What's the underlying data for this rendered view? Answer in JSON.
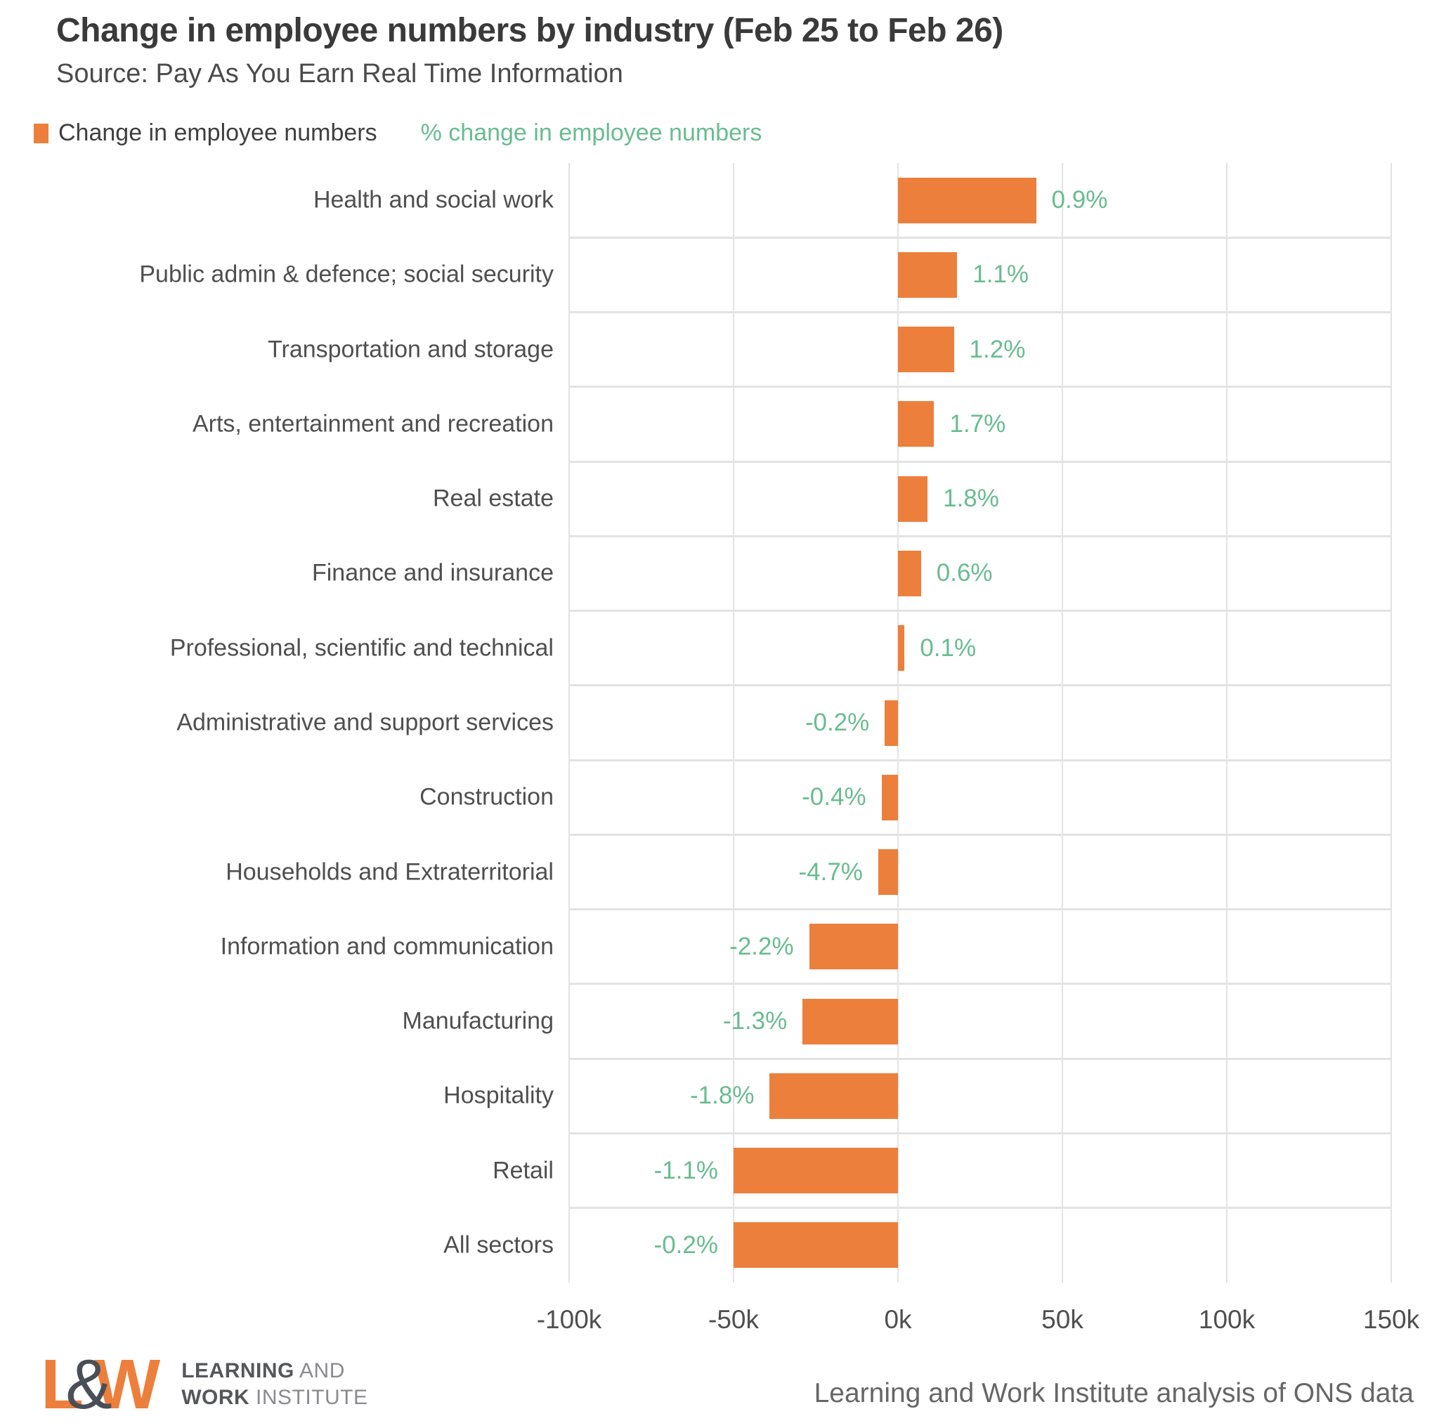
{
  "title": "Change in employee numbers by industry (Feb 25 to Feb 26)",
  "subtitle": "Source: Pay As You Earn Real Time Information",
  "legend": {
    "series1_label": "Change in employee numbers",
    "series2_label": "% change in employee numbers"
  },
  "colors": {
    "bar": "#ED7F3C",
    "pct_text": "#69BC90",
    "title_text": "#3A3A3A",
    "subtitle_text": "#4B4B4B",
    "label_text": "#4F4F4F",
    "grid": "#E3E3E3",
    "logo_orange": "#ED7F3C",
    "logo_dark": "#4A4F57"
  },
  "chart_data": {
    "type": "bar",
    "orientation": "horizontal",
    "title": "Change in employee numbers by industry (Feb 25 to Feb 26)",
    "unit": "thousands of employees",
    "xlim_k": [
      -100,
      150
    ],
    "grid": true,
    "legend_position": "top-left",
    "x_ticks": [
      {
        "value_k": -100,
        "label": "-100k"
      },
      {
        "value_k": -50,
        "label": "-50k"
      },
      {
        "value_k": 0,
        "label": "0k"
      },
      {
        "value_k": 50,
        "label": "50k"
      },
      {
        "value_k": 100,
        "label": "100k"
      },
      {
        "value_k": 150,
        "label": "150k"
      }
    ],
    "rows": [
      {
        "category": "Health and social work",
        "change_k": 42,
        "pct_label": "0.9%"
      },
      {
        "category": "Public admin & defence; social security",
        "change_k": 18,
        "pct_label": "1.1%"
      },
      {
        "category": "Transportation and storage",
        "change_k": 17,
        "pct_label": "1.2%"
      },
      {
        "category": "Arts, entertainment and recreation",
        "change_k": 11,
        "pct_label": "1.7%"
      },
      {
        "category": "Real estate",
        "change_k": 9,
        "pct_label": "1.8%"
      },
      {
        "category": "Finance and insurance",
        "change_k": 7,
        "pct_label": "0.6%"
      },
      {
        "category": "Professional, scientific and technical",
        "change_k": 2,
        "pct_label": "0.1%"
      },
      {
        "category": "Administrative and support services",
        "change_k": -4,
        "pct_label": "-0.2%"
      },
      {
        "category": "Construction",
        "change_k": -5,
        "pct_label": "-0.4%"
      },
      {
        "category": "Households and Extraterritorial",
        "change_k": -6,
        "pct_label": "-4.7%"
      },
      {
        "category": "Information and communication",
        "change_k": -27,
        "pct_label": "-2.2%"
      },
      {
        "category": "Manufacturing",
        "change_k": -29,
        "pct_label": "-1.3%"
      },
      {
        "category": "Hospitality",
        "change_k": -39,
        "pct_label": "-1.8%"
      },
      {
        "category": "Retail",
        "change_k": -50,
        "pct_label": "-1.1%"
      },
      {
        "category": "All sectors",
        "change_k": -50,
        "pct_label": "-0.2%"
      }
    ]
  },
  "footer": {
    "logo": {
      "letter_l": "L",
      "ampersand": "&",
      "letter_w": "W",
      "line1_bold": "LEARNING",
      "line1_rest": " AND",
      "line2_bold": "WORK",
      "line2_rest": " INSTITUTE"
    },
    "attribution": "Learning and Work Institute analysis of ONS data"
  }
}
